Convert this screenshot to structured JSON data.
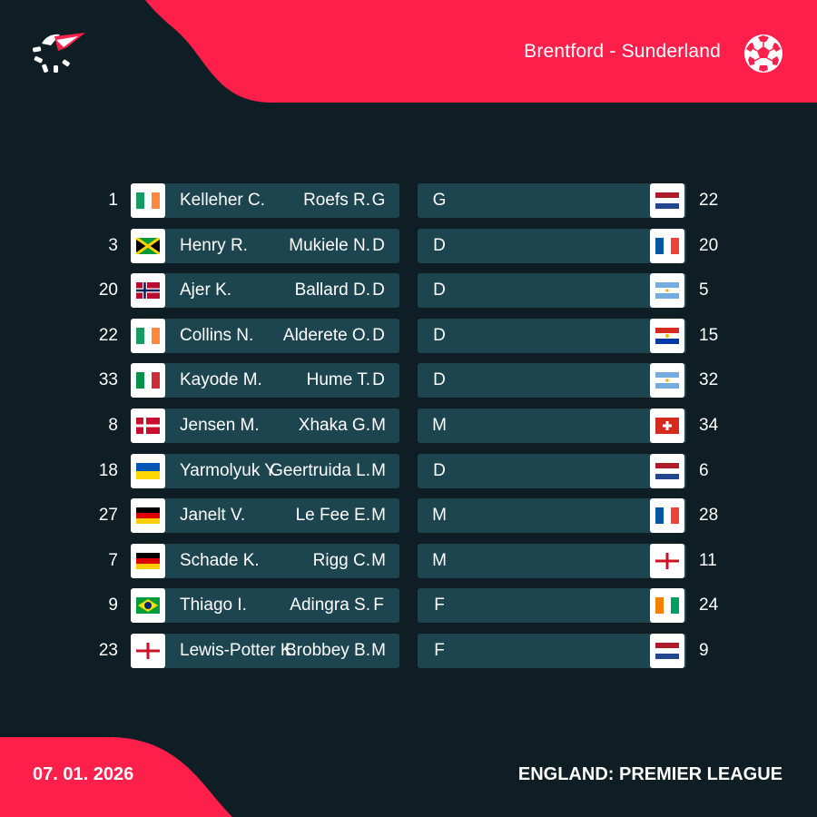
{
  "header": {
    "match": "Brentford - Sunderland"
  },
  "footer": {
    "date": "07. 01. 2026",
    "competition": "ENGLAND: PREMIER LEAGUE"
  },
  "colors": {
    "accent": "#fe1f4b",
    "background": "#0f1e25",
    "bar": "#1d4550"
  },
  "icons": {
    "logo": "flashscore-logo-icon",
    "sport": "football-icon"
  },
  "home": {
    "players": [
      {
        "number": "1",
        "name": "Kelleher C.",
        "pos": "G",
        "flag": "ireland"
      },
      {
        "number": "3",
        "name": "Henry R.",
        "pos": "D",
        "flag": "jamaica"
      },
      {
        "number": "20",
        "name": "Ajer K.",
        "pos": "D",
        "flag": "norway"
      },
      {
        "number": "22",
        "name": "Collins N.",
        "pos": "D",
        "flag": "ireland"
      },
      {
        "number": "33",
        "name": "Kayode M.",
        "pos": "D",
        "flag": "italy"
      },
      {
        "number": "8",
        "name": "Jensen M.",
        "pos": "M",
        "flag": "denmark"
      },
      {
        "number": "18",
        "name": "Yarmolyuk Y.",
        "pos": "M",
        "flag": "ukraine"
      },
      {
        "number": "27",
        "name": "Janelt V.",
        "pos": "M",
        "flag": "germany"
      },
      {
        "number": "7",
        "name": "Schade K.",
        "pos": "M",
        "flag": "germany"
      },
      {
        "number": "9",
        "name": "Thiago I.",
        "pos": "F",
        "flag": "brazil"
      },
      {
        "number": "23",
        "name": "Lewis-Potter K.",
        "pos": "M",
        "flag": "england"
      }
    ]
  },
  "away": {
    "players": [
      {
        "number": "22",
        "name": "Roefs R.",
        "pos": "G",
        "flag": "netherlands"
      },
      {
        "number": "20",
        "name": "Mukiele N.",
        "pos": "D",
        "flag": "france"
      },
      {
        "number": "5",
        "name": "Ballard D.",
        "pos": "D",
        "flag": "argentina"
      },
      {
        "number": "15",
        "name": "Alderete O.",
        "pos": "D",
        "flag": "paraguay"
      },
      {
        "number": "32",
        "name": "Hume T.",
        "pos": "D",
        "flag": "argentina"
      },
      {
        "number": "34",
        "name": "Xhaka G.",
        "pos": "M",
        "flag": "switzerland"
      },
      {
        "number": "6",
        "name": "Geertruida L.",
        "pos": "D",
        "flag": "netherlands"
      },
      {
        "number": "28",
        "name": "Le Fee E.",
        "pos": "M",
        "flag": "france"
      },
      {
        "number": "11",
        "name": "Rigg C.",
        "pos": "M",
        "flag": "england"
      },
      {
        "number": "24",
        "name": "Adingra S.",
        "pos": "F",
        "flag": "ivory-coast"
      },
      {
        "number": "9",
        "name": "Brobbey B.",
        "pos": "F",
        "flag": "netherlands"
      }
    ]
  }
}
